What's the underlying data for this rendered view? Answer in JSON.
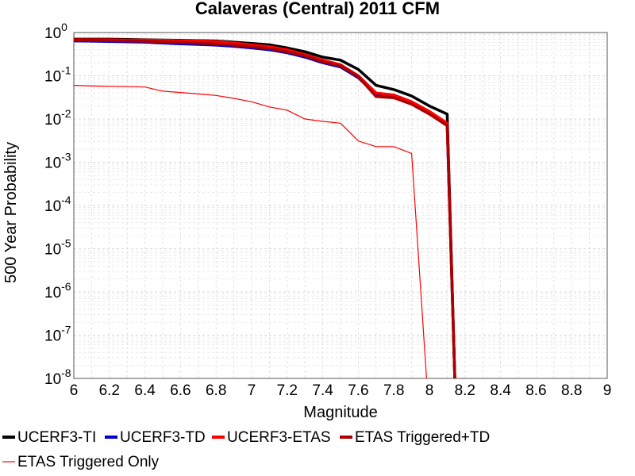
{
  "chart_data": {
    "type": "line",
    "title": "Calaveras (Central) 2011 CFM",
    "xlabel": "Magnitude",
    "ylabel": "500 Year Probability",
    "xlim": [
      6,
      9
    ],
    "ylim": [
      1e-08,
      1
    ],
    "y_scale": "log",
    "grid": true,
    "legend_position": "bottom",
    "x_ticks": [
      "6",
      "6.2",
      "6.4",
      "6.6",
      "6.8",
      "7",
      "7.2",
      "7.4",
      "7.6",
      "7.8",
      "8",
      "8.2",
      "8.4",
      "8.6",
      "8.8",
      "9"
    ],
    "y_ticks": [
      {
        "base": "10",
        "exp": "0"
      },
      {
        "base": "10",
        "exp": "-1"
      },
      {
        "base": "10",
        "exp": "-2"
      },
      {
        "base": "10",
        "exp": "-3"
      },
      {
        "base": "10",
        "exp": "-4"
      },
      {
        "base": "10",
        "exp": "-5"
      },
      {
        "base": "10",
        "exp": "-6"
      },
      {
        "base": "10",
        "exp": "-7"
      },
      {
        "base": "10",
        "exp": "-8"
      }
    ],
    "x": [
      6.0,
      6.1,
      6.2,
      6.3,
      6.4,
      6.5,
      6.6,
      6.7,
      6.8,
      6.9,
      7.0,
      7.1,
      7.2,
      7.3,
      7.4,
      7.5,
      7.6,
      7.7,
      7.8,
      7.9,
      8.0,
      8.1,
      8.15
    ],
    "series": [
      {
        "name": "UCERF3-TI",
        "color": "#000000",
        "width": 3.5,
        "values": [
          0.7,
          0.7,
          0.7,
          0.69,
          0.68,
          0.67,
          0.66,
          0.65,
          0.64,
          0.6,
          0.56,
          0.52,
          0.44,
          0.36,
          0.27,
          0.23,
          0.14,
          0.06,
          0.048,
          0.034,
          0.02,
          0.013,
          1e-09
        ]
      },
      {
        "name": "UCERF3-TD",
        "color": "#0000cc",
        "width": 3.5,
        "values": [
          0.64,
          0.63,
          0.62,
          0.61,
          0.6,
          0.57,
          0.55,
          0.53,
          0.51,
          0.48,
          0.44,
          0.4,
          0.34,
          0.27,
          0.2,
          0.16,
          0.09,
          0.037,
          0.033,
          0.023,
          0.014,
          0.0075,
          1e-09
        ]
      },
      {
        "name": "UCERF3-ETAS",
        "color": "#ff0000",
        "width": 3.5,
        "values": [
          0.68,
          0.68,
          0.68,
          0.67,
          0.67,
          0.66,
          0.65,
          0.64,
          0.62,
          0.57,
          0.52,
          0.47,
          0.4,
          0.31,
          0.23,
          0.18,
          0.1,
          0.04,
          0.036,
          0.025,
          0.015,
          0.008,
          1e-09
        ]
      },
      {
        "name": "ETAS Triggered+TD",
        "color": "#aa0000",
        "width": 3.5,
        "values": [
          0.66,
          0.66,
          0.65,
          0.64,
          0.63,
          0.61,
          0.59,
          0.57,
          0.55,
          0.51,
          0.47,
          0.43,
          0.36,
          0.29,
          0.21,
          0.17,
          0.095,
          0.033,
          0.031,
          0.022,
          0.013,
          0.007,
          1e-09
        ]
      },
      {
        "name": "ETAS Triggered Only",
        "color": "#ff0000",
        "width": 1.2,
        "values": [
          0.06,
          0.058,
          0.057,
          0.056,
          0.055,
          0.044,
          0.041,
          0.038,
          0.035,
          0.03,
          0.025,
          0.019,
          0.016,
          0.01,
          0.0088,
          0.008,
          0.0031,
          0.0023,
          0.0023,
          0.0016,
          1e-09,
          null,
          null
        ]
      }
    ]
  }
}
